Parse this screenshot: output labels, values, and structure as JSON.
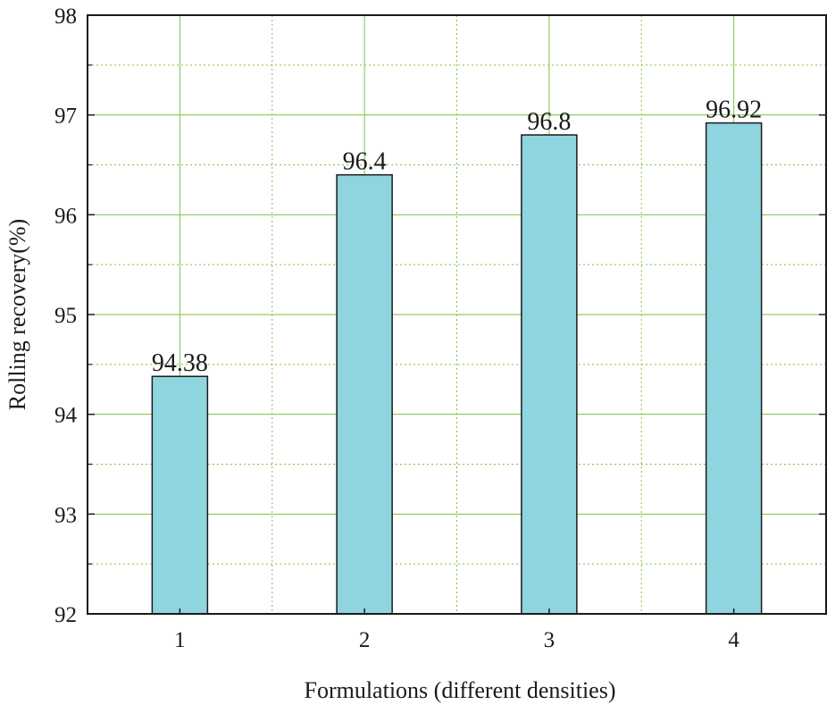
{
  "chart_data": {
    "type": "bar",
    "title": "",
    "xlabel": "Formulations (different densities)",
    "ylabel": "Rolling recovery(%)",
    "categories": [
      "1",
      "2",
      "3",
      "4"
    ],
    "values": [
      94.38,
      96.4,
      96.8,
      96.92
    ],
    "data_labels": [
      "94.38",
      "96.4",
      "96.8",
      "96.92"
    ],
    "ylim": [
      92,
      98
    ],
    "yticks": [
      92,
      93,
      94,
      95,
      96,
      97,
      98
    ],
    "ytick_labels": [
      "92",
      "93",
      "94",
      "95",
      "96",
      "97",
      "98"
    ],
    "grid": true,
    "colors": {
      "bar_fill": "#8fd5e0",
      "bar_stroke": "#1a1a1a",
      "grid_major": "#7cc242",
      "grid_minor": "#7cc242",
      "axis": "#1a1a1a"
    }
  }
}
